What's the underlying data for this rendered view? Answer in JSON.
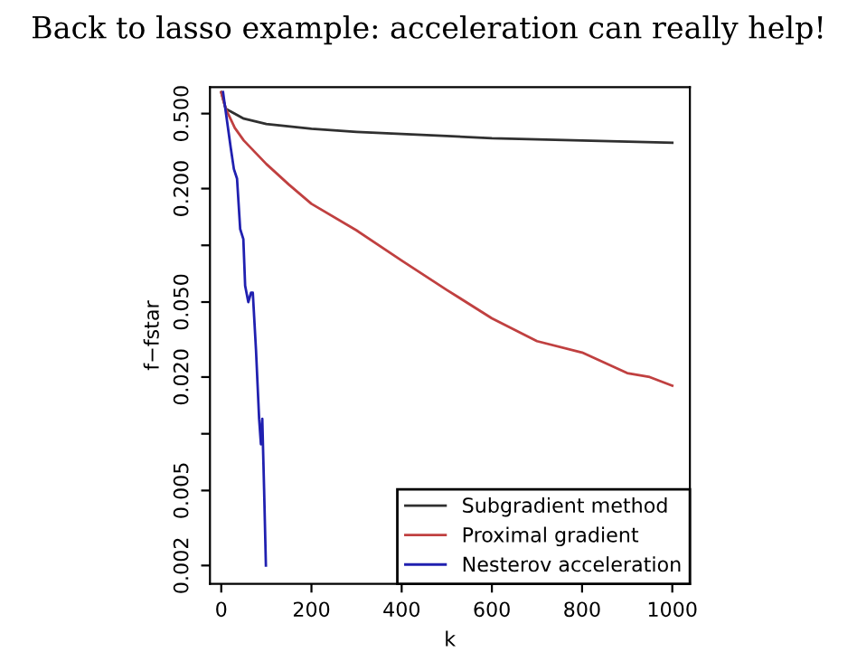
{
  "chart_data": {
    "type": "line",
    "title": "Back to lasso example: acceleration can really help!",
    "xlabel": "k",
    "ylabel": "f−fstar",
    "log": "y",
    "xlim": [
      -25,
      1039
    ],
    "ylim": [
      0.0016,
      0.69
    ],
    "xticks": [
      0,
      200,
      400,
      600,
      800,
      1000
    ],
    "yticks": [
      {
        "value": 0.5,
        "label": "0.500"
      },
      {
        "value": 0.2,
        "label": "0.200"
      },
      {
        "value": 0.1,
        "label": null
      },
      {
        "value": 0.05,
        "label": "0.050"
      },
      {
        "value": 0.02,
        "label": "0.020"
      },
      {
        "value": 0.01,
        "label": null
      },
      0.005,
      0.002
    ],
    "legend": "bottom right",
    "grid": false,
    "series": [
      {
        "name": "Subgradient method",
        "color": "#303030",
        "x": [
          0,
          10,
          50,
          100,
          200,
          300,
          400,
          500,
          600,
          800,
          1000
        ],
        "values": [
          0.65,
          0.53,
          0.47,
          0.44,
          0.415,
          0.4,
          0.39,
          0.38,
          0.37,
          0.36,
          0.35
        ]
      },
      {
        "name": "Proximal gradient",
        "color": "#c04040",
        "x": [
          0,
          10,
          30,
          50,
          100,
          150,
          200,
          300,
          400,
          500,
          600,
          700,
          800,
          900,
          950,
          1000
        ],
        "values": [
          0.65,
          0.53,
          0.42,
          0.36,
          0.27,
          0.21,
          0.166,
          0.12,
          0.083,
          0.058,
          0.041,
          0.031,
          0.027,
          0.021,
          0.02,
          0.018
        ]
      },
      {
        "name": "Nesterov acceleration",
        "color": "#2020b0",
        "x": [
          4,
          21,
          28,
          35,
          42,
          49,
          53,
          60,
          66,
          70,
          77,
          84,
          88,
          91,
          95,
          99
        ],
        "values": [
          0.65,
          0.33,
          0.254,
          0.226,
          0.122,
          0.108,
          0.061,
          0.05,
          0.056,
          0.056,
          0.028,
          0.012,
          0.0088,
          0.012,
          0.0051,
          0.002
        ]
      }
    ]
  }
}
